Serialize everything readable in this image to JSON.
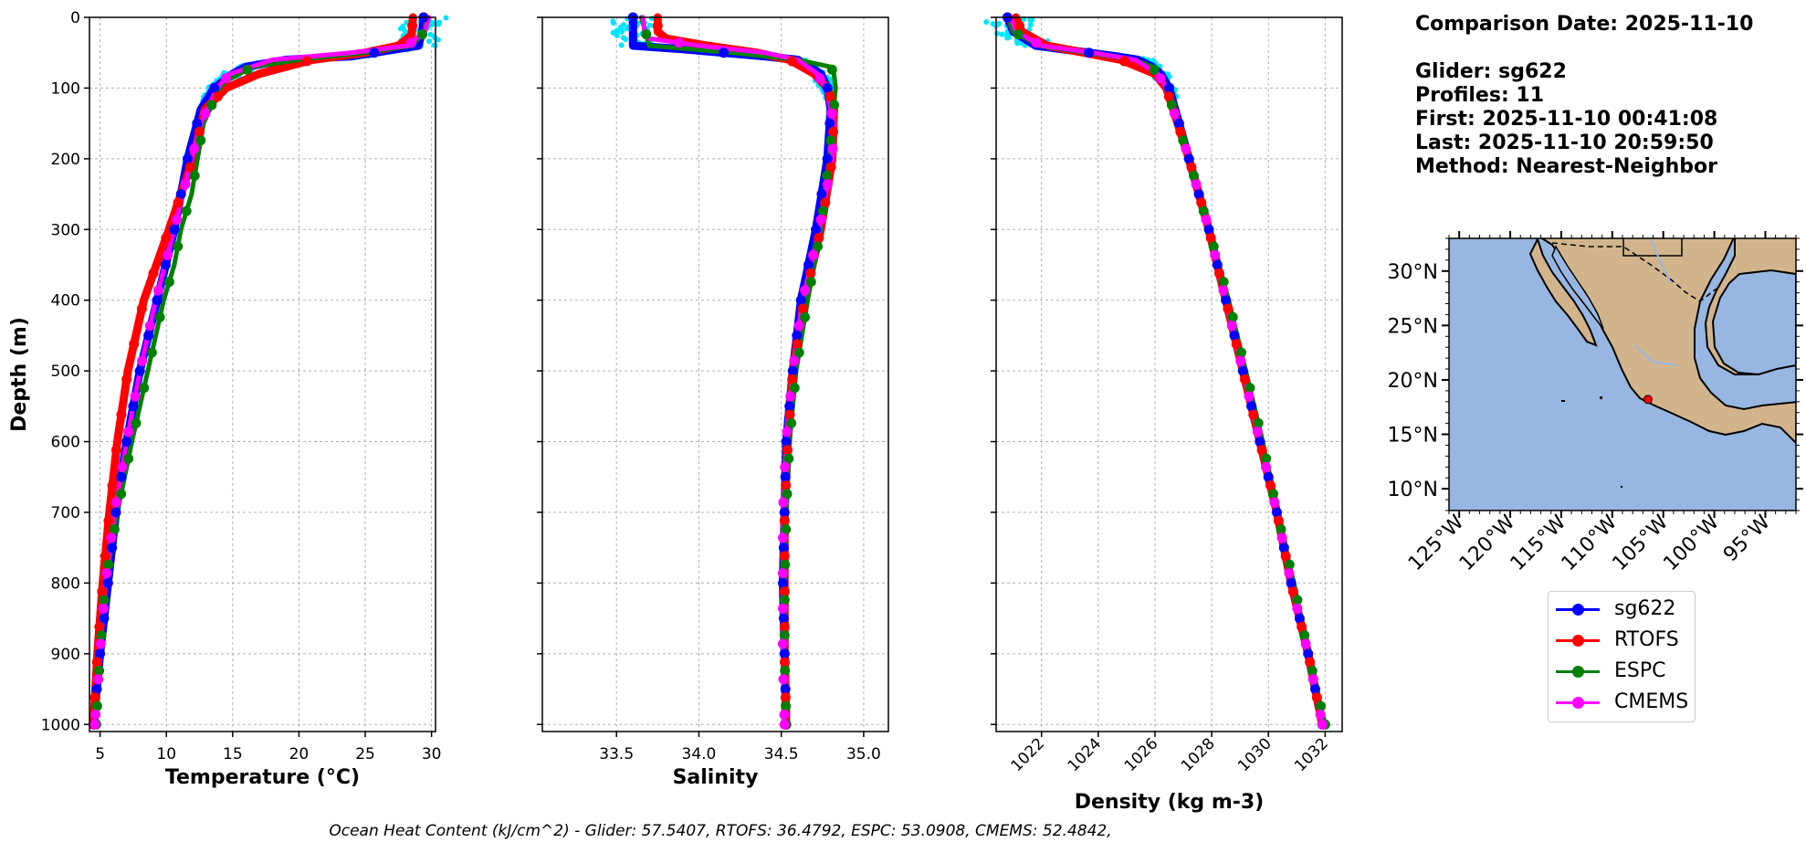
{
  "info": {
    "comparison_date": "Comparison Date: 2025-11-10",
    "glider": "Glider: sg622",
    "profiles": "Profiles: 11",
    "first": "First: 2025-11-10 00:41:08",
    "last": "Last: 2025-11-10 20:59:50",
    "method": "Method: Nearest-Neighbor"
  },
  "footer": "Ocean Heat Content (kJ/cm^2) - Glider: 57.5407,  RTOFS: 36.4792,  ESPC: 53.0908,  CMEMS: 52.4842,",
  "legend": [
    {
      "name": "sg622",
      "color": "#0000ff"
    },
    {
      "name": "RTOFS",
      "color": "#ff0000"
    },
    {
      "name": "ESPC",
      "color": "#008000"
    },
    {
      "name": "CMEMS",
      "color": "#ff00ff"
    }
  ],
  "colors": {
    "raw_glider": "#00e5ff",
    "ocean": "#97b6e1",
    "land": "#d2b48c",
    "grid": "#b0b0b0"
  },
  "chart_data": [
    {
      "type": "line",
      "xlabel": "Temperature (°C)",
      "ylabel": "Depth (m)",
      "xlim": [
        4.2,
        30.3
      ],
      "ylim": [
        1010,
        0
      ],
      "xticks": [
        5,
        10,
        15,
        20,
        25,
        30
      ],
      "yticks": [
        0,
        100,
        200,
        300,
        400,
        500,
        600,
        700,
        800,
        900,
        1000
      ],
      "grid": true,
      "series": [
        {
          "name": "sg622",
          "depth": [
            0,
            20,
            40,
            55,
            60,
            70,
            80,
            100,
            130,
            200,
            300,
            400,
            500,
            600,
            700,
            800,
            900,
            1000
          ],
          "values": [
            29.4,
            29.3,
            29.0,
            24.0,
            19.0,
            16.0,
            15.0,
            13.6,
            12.6,
            11.6,
            10.6,
            9.3,
            8.0,
            7.0,
            6.2,
            5.6,
            5.0,
            4.5
          ]
        },
        {
          "name": "RTOFS",
          "depth": [
            0,
            25,
            40,
            50,
            60,
            80,
            100,
            130,
            200,
            300,
            400,
            500,
            600,
            700,
            800,
            900,
            1000
          ],
          "values": [
            28.6,
            28.5,
            27.5,
            25.0,
            21.0,
            17.0,
            14.5,
            12.9,
            12.0,
            10.2,
            8.3,
            7.1,
            6.3,
            5.7,
            5.2,
            4.8,
            4.5
          ]
        },
        {
          "name": "ESPC",
          "depth": [
            0,
            20,
            40,
            50,
            60,
            70,
            90,
            100,
            150,
            250,
            300,
            350,
            400,
            500,
            600,
            700,
            800,
            900,
            1000
          ],
          "values": [
            29.6,
            29.5,
            28.5,
            25.0,
            20.0,
            16.5,
            14.5,
            14.0,
            12.8,
            11.9,
            11.1,
            10.6,
            9.8,
            8.6,
            7.4,
            6.3,
            5.4,
            5.0,
            4.7
          ]
        },
        {
          "name": "CMEMS",
          "depth": [
            0,
            20,
            40,
            50,
            60,
            80,
            100,
            150,
            200,
            300,
            400,
            500,
            600,
            700,
            800,
            900,
            1000
          ],
          "values": [
            29.8,
            29.5,
            28.2,
            24.0,
            18.0,
            14.8,
            13.8,
            12.6,
            11.9,
            10.6,
            9.2,
            8.0,
            7.0,
            6.1,
            5.4,
            5.0,
            4.6
          ]
        }
      ]
    },
    {
      "type": "line",
      "xlabel": "Salinity",
      "ylabel": "",
      "xlim": [
        33.05,
        35.15
      ],
      "ylim": [
        1010,
        0
      ],
      "xticks": [
        33.5,
        34.0,
        34.5,
        35.0
      ],
      "grid": true,
      "series": [
        {
          "name": "sg622",
          "depth": [
            0,
            40,
            45,
            55,
            60,
            80,
            100,
            130,
            200,
            300,
            400,
            500,
            600,
            700,
            800,
            900,
            1000
          ],
          "values": [
            33.6,
            33.6,
            33.9,
            34.4,
            34.6,
            34.74,
            34.78,
            34.8,
            34.78,
            34.71,
            34.62,
            34.57,
            34.53,
            34.52,
            34.51,
            34.52,
            34.53
          ]
        },
        {
          "name": "RTOFS",
          "depth": [
            0,
            20,
            30,
            40,
            50,
            60,
            80,
            100,
            130,
            200,
            300,
            400,
            500,
            600,
            700,
            800,
            900,
            1000
          ],
          "values": [
            33.75,
            33.75,
            33.8,
            34.05,
            34.35,
            34.55,
            34.7,
            34.78,
            34.82,
            34.81,
            34.74,
            34.64,
            34.57,
            34.54,
            34.52,
            34.52,
            34.52,
            34.53
          ]
        },
        {
          "name": "ESPC",
          "depth": [
            0,
            40,
            50,
            60,
            70,
            80,
            100,
            150,
            200,
            300,
            400,
            500,
            600,
            700,
            800,
            900,
            1000
          ],
          "values": [
            33.65,
            33.7,
            34.2,
            34.6,
            34.8,
            34.82,
            34.83,
            34.81,
            34.79,
            34.74,
            34.66,
            34.59,
            34.55,
            34.53,
            34.52,
            34.52,
            34.53
          ]
        },
        {
          "name": "CMEMS",
          "depth": [
            0,
            20,
            30,
            40,
            50,
            60,
            80,
            100,
            150,
            200,
            300,
            400,
            500,
            600,
            700,
            800,
            900,
            1000
          ],
          "values": [
            33.66,
            33.67,
            33.7,
            34.0,
            34.4,
            34.6,
            34.72,
            34.77,
            34.82,
            34.81,
            34.73,
            34.63,
            34.57,
            34.53,
            34.51,
            34.51,
            34.51,
            34.52
          ]
        }
      ]
    },
    {
      "type": "line",
      "xlabel": "Density (kg m-3)",
      "ylabel": "",
      "xlim": [
        1020.4,
        1032.6
      ],
      "ylim": [
        1010,
        0
      ],
      "xticks": [
        1022,
        1024,
        1026,
        1028,
        1030,
        1032
      ],
      "grid": true,
      "series": [
        {
          "name": "sg622",
          "depth": [
            0,
            20,
            40,
            55,
            60,
            70,
            80,
            100,
            200,
            300,
            400,
            500,
            600,
            700,
            800,
            900,
            1000
          ],
          "values": [
            1020.8,
            1021.0,
            1021.8,
            1024.6,
            1025.4,
            1025.9,
            1026.2,
            1026.5,
            1027.2,
            1027.9,
            1028.5,
            1029.1,
            1029.7,
            1030.3,
            1030.8,
            1031.4,
            1031.9
          ]
        },
        {
          "name": "RTOFS",
          "depth": [
            0,
            20,
            40,
            50,
            60,
            80,
            100,
            200,
            300,
            400,
            500,
            600,
            700,
            800,
            900,
            1000
          ],
          "values": [
            1021.1,
            1021.3,
            1022.2,
            1023.5,
            1024.8,
            1026.0,
            1026.4,
            1027.2,
            1027.9,
            1028.5,
            1029.1,
            1029.7,
            1030.3,
            1030.8,
            1031.4,
            1031.9
          ]
        },
        {
          "name": "ESPC",
          "depth": [
            0,
            20,
            40,
            50,
            60,
            70,
            90,
            100,
            200,
            300,
            400,
            500,
            600,
            700,
            800,
            900,
            1000
          ],
          "values": [
            1020.8,
            1021.0,
            1021.9,
            1023.6,
            1025.3,
            1025.9,
            1026.3,
            1026.4,
            1027.2,
            1027.9,
            1028.6,
            1029.2,
            1029.8,
            1030.3,
            1030.9,
            1031.4,
            1032.0
          ]
        },
        {
          "name": "CMEMS",
          "depth": [
            0,
            20,
            40,
            50,
            60,
            80,
            100,
            200,
            300,
            400,
            500,
            600,
            700,
            800,
            900,
            1000
          ],
          "values": [
            1020.9,
            1021.1,
            1022.0,
            1023.8,
            1025.3,
            1026.1,
            1026.4,
            1027.2,
            1027.9,
            1028.5,
            1029.1,
            1029.7,
            1030.3,
            1030.8,
            1031.4,
            1031.9
          ]
        }
      ]
    },
    {
      "type": "map",
      "lat_ticks": [
        "10°N",
        "15°N",
        "20°N",
        "25°N",
        "30°N"
      ],
      "lon_ticks": [
        "125°W",
        "120°W",
        "115°W",
        "110°W",
        "105°W",
        "100°W",
        "95°W"
      ],
      "extent": {
        "lon": [
          -126,
          -92
        ],
        "lat": [
          8,
          33
        ]
      },
      "marker": {
        "lon": -106.5,
        "lat": 18.2,
        "color": "#ff0000"
      }
    }
  ]
}
